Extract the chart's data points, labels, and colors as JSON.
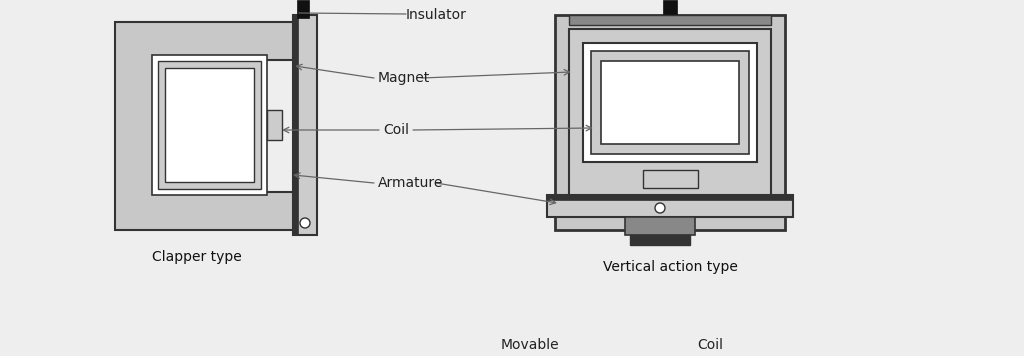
{
  "bg_color": "#eeeeee",
  "dark_gray": "#333333",
  "mid_gray": "#888888",
  "light_gray": "#bbbbbb",
  "lighter_gray": "#cccccc",
  "body_gray": "#c8c8c8",
  "white": "#ffffff",
  "black": "#111111",
  "line_color": "#666666",
  "label_magnet": "Magnet",
  "label_coil": "Coil",
  "label_armature": "Armature",
  "label_insulator": "Insulator",
  "label_clapper": "Clapper type",
  "label_vertical": "Vertical action type",
  "label_movable": "Movable",
  "label_coil2": "Coil"
}
